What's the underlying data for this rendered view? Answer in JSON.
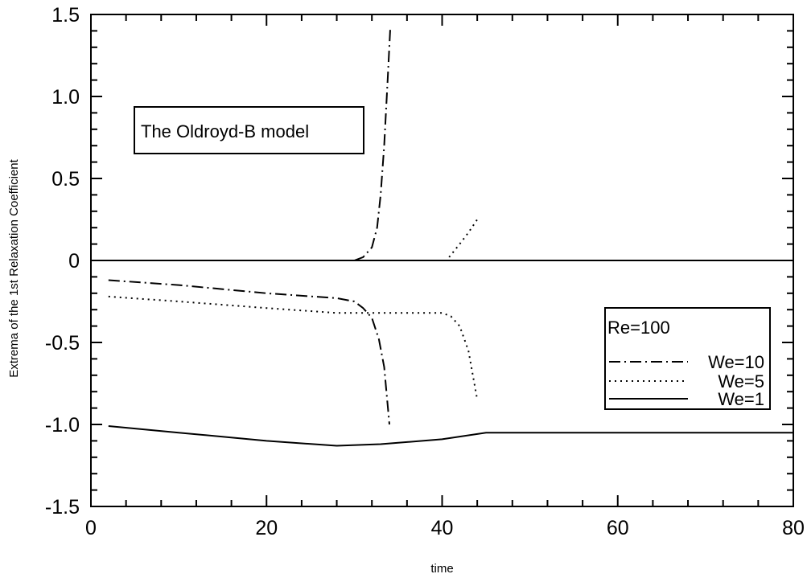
{
  "chart_data": {
    "type": "line",
    "title": "",
    "xlabel": "time",
    "ylabel": "Extrema of the 1st Relaxation Coefficient",
    "xlim": [
      0,
      80
    ],
    "ylim": [
      -1.5,
      1.5
    ],
    "x_ticks": [
      "0",
      "20",
      "40",
      "60",
      "80"
    ],
    "y_ticks": [
      "-1.5",
      "-1.0",
      "-0.5",
      "0",
      "0.5",
      "1.0",
      "1.5"
    ],
    "grid": false,
    "annotation": "The Oldroyd-B model",
    "legend": {
      "placement": "right",
      "header": "Re=100",
      "entries": [
        "We=10",
        "We=5",
        "We=1"
      ]
    },
    "series": [
      {
        "name": "We=10",
        "style": "dashdot",
        "segments": [
          [
            [
              2,
              -0.12
            ],
            [
              10,
              -0.15
            ],
            [
              20,
              -0.2
            ],
            [
              28,
              -0.23
            ],
            [
              30,
              -0.25
            ],
            [
              31,
              -0.29
            ],
            [
              32,
              -0.35
            ],
            [
              32.8,
              -0.48
            ],
            [
              33.4,
              -0.65
            ],
            [
              34,
              -1.0
            ]
          ],
          [
            [
              30,
              0
            ],
            [
              31,
              0.02
            ],
            [
              32,
              0.08
            ],
            [
              32.6,
              0.2
            ],
            [
              33.0,
              0.4
            ],
            [
              33.4,
              0.7
            ],
            [
              33.8,
              1.1
            ],
            [
              34.1,
              1.42
            ]
          ]
        ]
      },
      {
        "name": "We=5",
        "style": "dotted",
        "segments": [
          [
            [
              2,
              -0.22
            ],
            [
              10,
              -0.25
            ],
            [
              20,
              -0.29
            ],
            [
              28,
              -0.32
            ],
            [
              35,
              -0.32
            ],
            [
              40,
              -0.32
            ],
            [
              41,
              -0.34
            ],
            [
              42,
              -0.4
            ],
            [
              43,
              -0.55
            ],
            [
              44,
              -0.85
            ]
          ],
          [
            [
              40.8,
              0.02
            ],
            [
              42,
              0.1
            ],
            [
              43,
              0.17
            ],
            [
              44,
              0.25
            ]
          ]
        ]
      },
      {
        "name": "We=1",
        "style": "solid",
        "segments": [
          [
            [
              2,
              -1.01
            ],
            [
              10,
              -1.05
            ],
            [
              20,
              -1.1
            ],
            [
              28,
              -1.13
            ],
            [
              33,
              -1.12
            ],
            [
              40,
              -1.09
            ],
            [
              45,
              -1.05
            ],
            [
              50,
              -1.05
            ],
            [
              60,
              -1.05
            ],
            [
              70,
              -1.05
            ],
            [
              80,
              -1.05
            ]
          ],
          [
            [
              0,
              0
            ],
            [
              80,
              0
            ]
          ]
        ]
      }
    ]
  }
}
